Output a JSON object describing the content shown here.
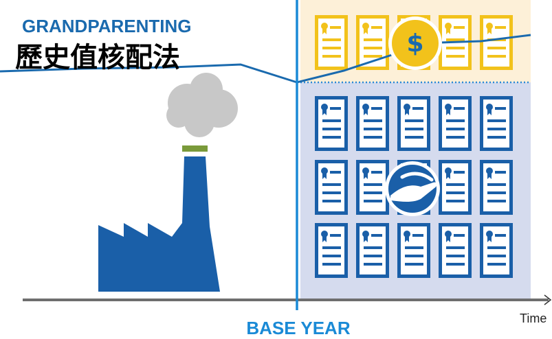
{
  "header": {
    "title": "GRANDPARENTING",
    "subtitle": "歷史值核配法"
  },
  "coin": {
    "label": "$"
  },
  "axis": {
    "marker": "BASE YEAR",
    "label": "Time"
  }
}
